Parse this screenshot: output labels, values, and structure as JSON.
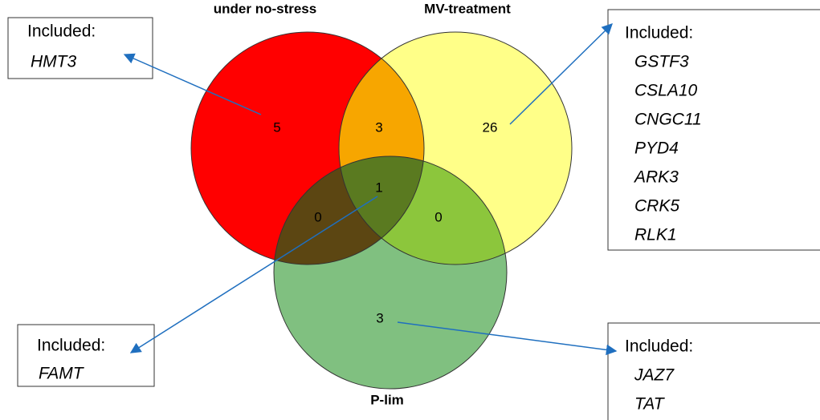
{
  "sets": [
    {
      "label": "under no-stress"
    },
    {
      "label": "MV-treatment"
    },
    {
      "label": "P-lim"
    }
  ],
  "regions": [
    {
      "count": 5
    },
    {
      "count": 3
    },
    {
      "count": 26
    },
    {
      "count": 1
    },
    {
      "count": 0
    },
    {
      "count": 0
    },
    {
      "count": 3
    }
  ],
  "callouts": [
    {
      "title": "Included:",
      "genes": [
        "HMT3"
      ]
    },
    {
      "title": "Included:",
      "genes": [
        "GSTF3",
        "CSLA10",
        "CNGC11",
        "PYD4",
        "ARK3",
        "CRK5",
        "RLK1"
      ]
    },
    {
      "title": "Included:",
      "genes": [
        "FAMT"
      ]
    },
    {
      "title": "Included:",
      "genes": [
        "JAZ7",
        "TAT"
      ]
    }
  ]
}
